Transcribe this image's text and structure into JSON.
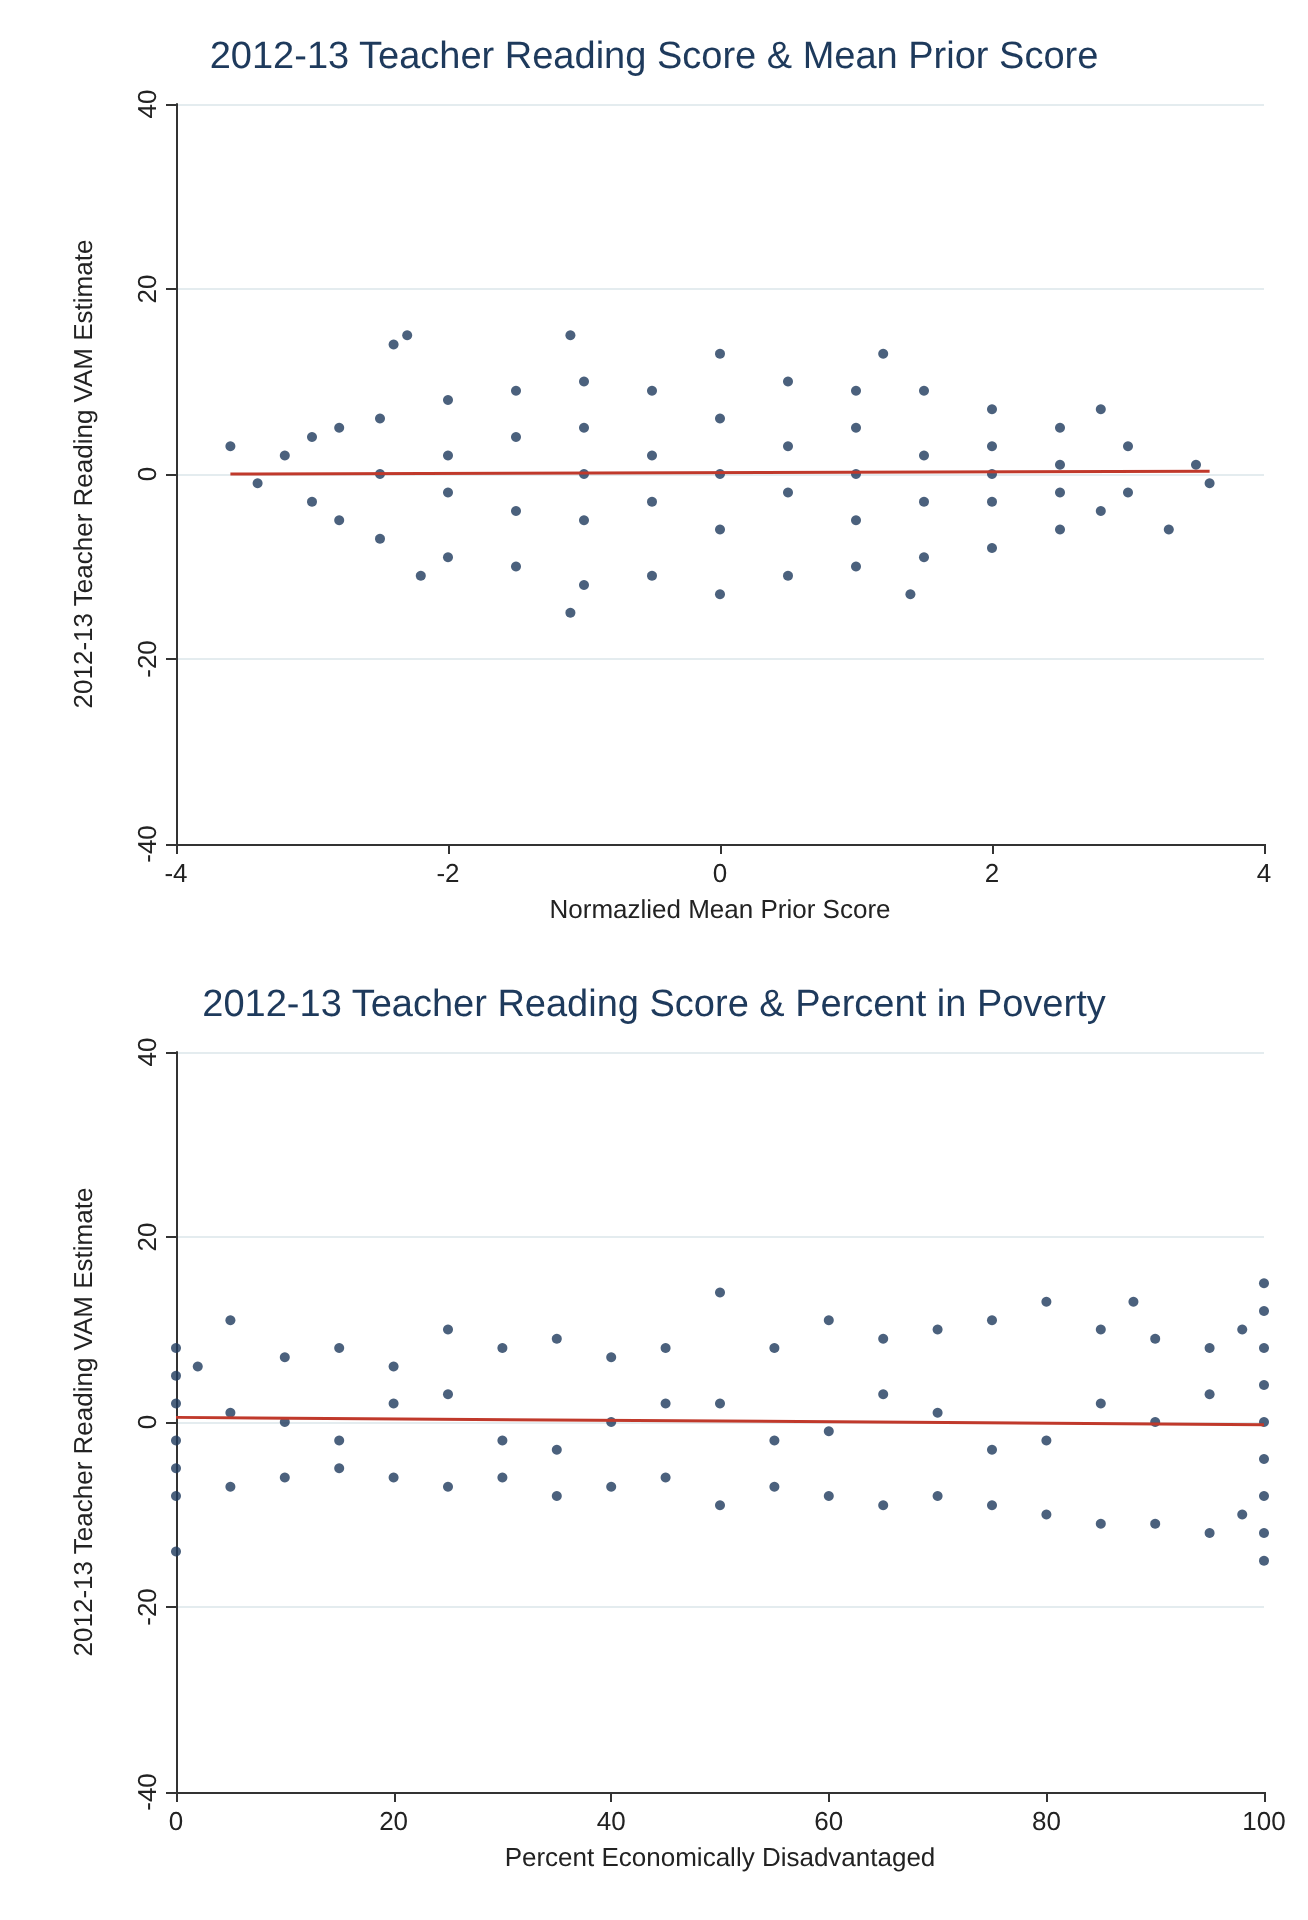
{
  "chart_data": [
    {
      "type": "scatter",
      "title": "2012-13 Teacher Reading Score & Mean Prior Score",
      "xlabel": "Normazlied Mean Prior Score",
      "ylabel": "2012-13 Teacher Reading VAM Estimate",
      "xlim": [
        -4,
        4
      ],
      "xticks": [
        -4,
        -2,
        0,
        2,
        4
      ],
      "ylim": [
        -40,
        40
      ],
      "yticks": [
        -40,
        -20,
        0,
        20,
        40
      ],
      "grid": "y",
      "series": [
        {
          "marker": "circle",
          "color": "#1e3a5c",
          "x": [
            -3.6,
            -3.2,
            -3,
            -2.8,
            -2.5,
            -2.3,
            -2.4,
            -2,
            -1.5,
            -1.1,
            -1,
            -0.5,
            0,
            0.5,
            1,
            1.2,
            1.5,
            2,
            2.5,
            2.8,
            3,
            3.5,
            -3.4,
            -3,
            -2.8,
            -2.5,
            -2.2,
            -2,
            -1.5,
            -1.1,
            -1,
            -0.5,
            0,
            0.5,
            1,
            1.4,
            1.5,
            2,
            2.5,
            2.8,
            3,
            3.3,
            3.6,
            -2.5,
            -2,
            -2,
            -1.5,
            -1.5,
            -1,
            -1,
            -1,
            -0.5,
            -0.5,
            0,
            0,
            0,
            0.5,
            0.5,
            1,
            1,
            1,
            1.5,
            1.5,
            2,
            2,
            2,
            2.5,
            2.5
          ],
          "values": [
            3,
            2,
            4,
            5,
            6,
            15,
            14,
            8,
            9,
            15,
            10,
            9,
            13,
            10,
            9,
            13,
            9,
            7,
            5,
            7,
            3,
            1,
            -1,
            -3,
            -5,
            -7,
            -11,
            -9,
            -10,
            -15,
            -12,
            -11,
            -13,
            -11,
            -10,
            -13,
            -9,
            -8,
            -6,
            -4,
            -2,
            -6,
            -1,
            0,
            2,
            -2,
            4,
            -4,
            0,
            5,
            -5,
            2,
            -3,
            0,
            6,
            -6,
            3,
            -2,
            0,
            5,
            -5,
            2,
            -3,
            0,
            3,
            -3,
            1,
            -2
          ]
        },
        {
          "type": "line",
          "color": "#c0392b",
          "x": [
            -3.6,
            3.6
          ],
          "values": [
            0,
            0.3
          ]
        }
      ]
    },
    {
      "type": "scatter",
      "title": "2012-13 Teacher Reading Score & Percent in Poverty",
      "xlabel": "Percent Economically Disadvantaged",
      "ylabel": "2012-13 Teacher Reading VAM Estimate",
      "xlim": [
        0,
        100
      ],
      "xticks": [
        0,
        20,
        40,
        60,
        80,
        100
      ],
      "ylim": [
        -40,
        40
      ],
      "yticks": [
        -40,
        -20,
        0,
        20,
        40
      ],
      "grid": "y",
      "series": [
        {
          "marker": "circle",
          "color": "#1e3a5c",
          "x": [
            0,
            0,
            0,
            0,
            0,
            0,
            0,
            100,
            100,
            100,
            100,
            100,
            100,
            100,
            100,
            100,
            2,
            5,
            5,
            10,
            10,
            15,
            15,
            20,
            20,
            25,
            25,
            30,
            30,
            35,
            35,
            40,
            40,
            45,
            45,
            50,
            50,
            55,
            55,
            60,
            60,
            65,
            65,
            70,
            70,
            75,
            75,
            80,
            80,
            85,
            85,
            88,
            90,
            90,
            95,
            95,
            98,
            98,
            10,
            20,
            30,
            40,
            50,
            60,
            70,
            80,
            90,
            95,
            5,
            15,
            25,
            35,
            45,
            55,
            65,
            75,
            85
          ],
          "values": [
            8,
            5,
            2,
            -2,
            -5,
            -8,
            -14,
            15,
            12,
            8,
            4,
            0,
            -4,
            -8,
            -12,
            -15,
            6,
            11,
            -7,
            7,
            -6,
            8,
            -5,
            6,
            -6,
            10,
            -7,
            8,
            -6,
            9,
            -8,
            7,
            -7,
            8,
            -6,
            14,
            -9,
            8,
            -7,
            11,
            -8,
            9,
            -9,
            10,
            -8,
            11,
            -9,
            13,
            -10,
            10,
            -11,
            13,
            9,
            -11,
            8,
            -12,
            10,
            -10,
            0,
            2,
            -2,
            0,
            2,
            -1,
            1,
            -2,
            0,
            3,
            1,
            -2,
            3,
            -3,
            2,
            -2,
            3,
            -3,
            2
          ]
        },
        {
          "type": "line",
          "color": "#c0392b",
          "x": [
            0,
            100
          ],
          "values": [
            0.5,
            -0.3
          ]
        }
      ]
    }
  ]
}
